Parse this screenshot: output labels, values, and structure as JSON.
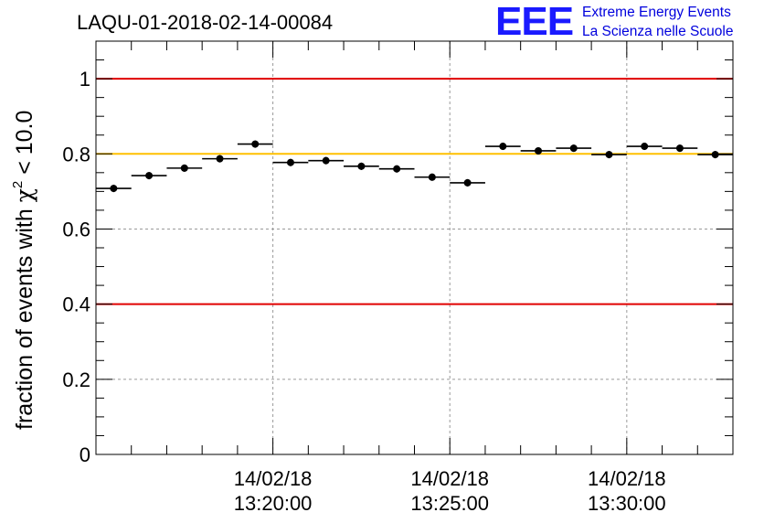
{
  "chart_data": {
    "type": "scatter",
    "title": "LAQU-01-2018-02-14-00084",
    "xlabel": "",
    "ylabel": "fraction of events with",
    "ylabel_chi": "χ",
    "ylabel_exp": "2",
    "ylabel_tail": " < 10.0",
    "ylim": [
      0,
      1.1
    ],
    "yticks": [
      "0",
      "0.2",
      "0.4",
      "0.6",
      "0.8",
      "1"
    ],
    "ytick_values": [
      0,
      0.2,
      0.4,
      0.6,
      0.8,
      1.0
    ],
    "x_unit": "minutes since 13:15:00",
    "xlim": [
      0,
      18
    ],
    "xtick_labels": [
      {
        "value": 5,
        "date": "14/02/18",
        "time": "13:20:00"
      },
      {
        "value": 10,
        "date": "14/02/18",
        "time": "13:25:00"
      },
      {
        "value": 15,
        "date": "14/02/18",
        "time": "13:30:00"
      }
    ],
    "bin_width": 1,
    "x": [
      0.5,
      1.5,
      2.5,
      3.5,
      4.5,
      5.5,
      6.5,
      7.5,
      8.5,
      9.5,
      10.5,
      11.5,
      12.5,
      13.5,
      14.5,
      15.5,
      16.5,
      17.5
    ],
    "values": [
      0.708,
      0.742,
      0.762,
      0.787,
      0.826,
      0.777,
      0.782,
      0.767,
      0.76,
      0.738,
      0.723,
      0.82,
      0.808,
      0.815,
      0.798,
      0.82,
      0.815,
      0.798
    ],
    "reference_lines": [
      {
        "value": 1.0,
        "color": "#e00000"
      },
      {
        "value": 0.8,
        "color": "#ffc000"
      },
      {
        "value": 0.4,
        "color": "#e00000"
      }
    ],
    "grid": true
  },
  "logo": {
    "mark": "EEE",
    "line1": "Extreme Energy Events",
    "line2": "La Scienza nelle Scuole"
  },
  "colors": {
    "mark": "#000000",
    "grid": "#9a9a9a",
    "logo": "#1a1aff"
  }
}
